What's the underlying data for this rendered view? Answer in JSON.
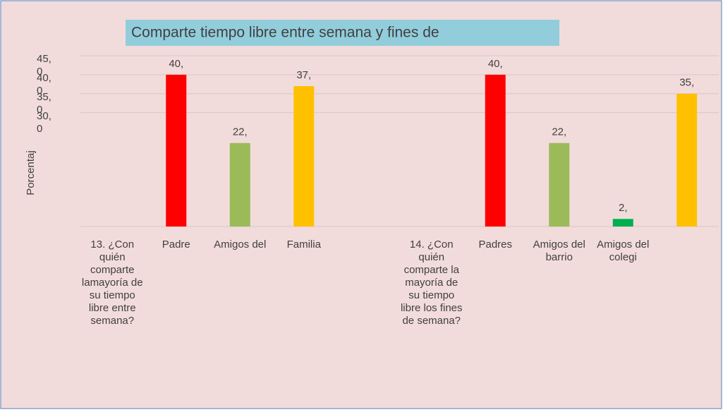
{
  "chart_data": {
    "type": "bar",
    "title": "Comparte tiempo libre entre semana y fines de",
    "y_label": "Porcentaj",
    "categories": [
      "13. ¿Con quién comparte lamayoría de su tiempo libre entre semana?",
      "Padre",
      "Amigos del",
      "Familia",
      null,
      "14. ¿Con quién comparte la mayoría de su tiempo libre los fines de semana?",
      "Padres",
      "Amigos del barrio",
      "Amigos del colegi",
      null
    ],
    "values": [
      null,
      40,
      22,
      37,
      null,
      null,
      40,
      22,
      2,
      35
    ],
    "value_labels": [
      null,
      "40,",
      "22,",
      "37,",
      null,
      null,
      "40,",
      "22,",
      "2,",
      "35,"
    ],
    "colors": [
      null,
      "#ff0000",
      "#9bbb59",
      "#ffc000",
      null,
      null,
      "#ff0000",
      "#9bbb59",
      "#00b050",
      "#ffc000"
    ],
    "ylim": [
      0,
      45
    ],
    "yticks": [
      {
        "value": 45,
        "label": "45,0"
      },
      {
        "value": 40,
        "label": "40,0"
      },
      {
        "value": 35,
        "label": "35,0"
      },
      {
        "value": 30,
        "label": "30,0"
      }
    ],
    "grid": true
  }
}
